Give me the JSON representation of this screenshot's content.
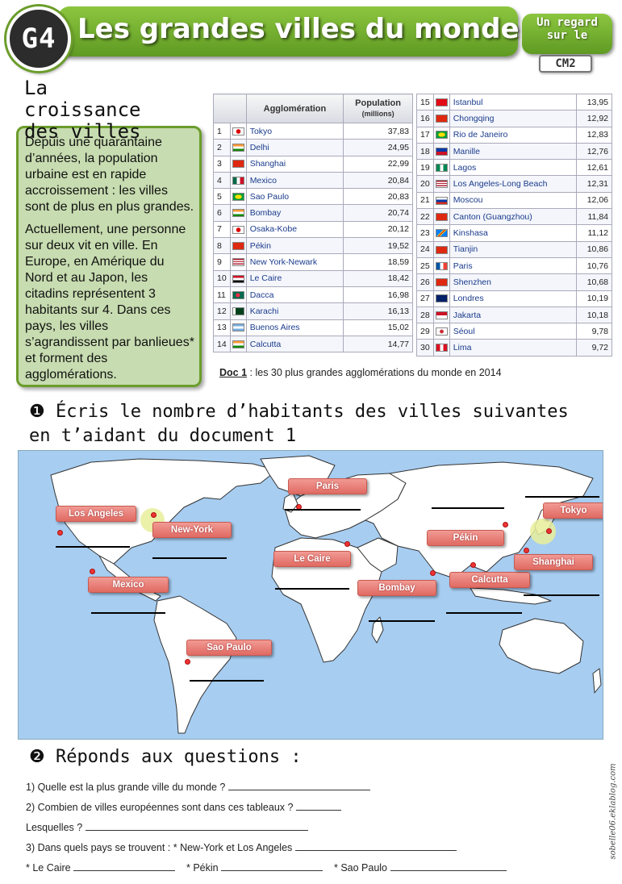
{
  "header": {
    "badge": "G4",
    "title": "Les grandes villes du monde",
    "series_badge": "Un regard sur le",
    "level": "CM2"
  },
  "lesson": {
    "subtitle": "La croissance des villes",
    "paragraph1": "Depuis une quarantaine d’années, la population urbaine est en rapide accroissement : les villes sont de plus en plus grandes.",
    "paragraph2": "Actuellement, une personne sur deux vit en ville. En Europe, en Amérique du Nord et au Japon, les citadins représentent 3 habitants sur 4. Dans ces pays, les villes s’agrandissent par banlieues* et forment des agglomérations."
  },
  "table": {
    "col_agglomeration": "Agglomération",
    "col_population": "Population",
    "col_population_unit": "(millions)",
    "left_rows": [
      {
        "rank": "1",
        "city": "Tokyo",
        "pop": "37,83",
        "flag": "japan"
      },
      {
        "rank": "2",
        "city": "Delhi",
        "pop": "24,95",
        "flag": "india"
      },
      {
        "rank": "3",
        "city": "Shanghai",
        "pop": "22,99",
        "flag": "china"
      },
      {
        "rank": "4",
        "city": "Mexico",
        "pop": "20,84",
        "flag": "mexico"
      },
      {
        "rank": "5",
        "city": "Sao Paulo",
        "pop": "20,83",
        "flag": "brazil"
      },
      {
        "rank": "6",
        "city": "Bombay",
        "pop": "20,74",
        "flag": "india"
      },
      {
        "rank": "7",
        "city": "Osaka-Kobe",
        "pop": "20,12",
        "flag": "japan"
      },
      {
        "rank": "8",
        "city": "Pékin",
        "pop": "19,52",
        "flag": "china"
      },
      {
        "rank": "9",
        "city": "New York-Newark",
        "pop": "18,59",
        "flag": "usa"
      },
      {
        "rank": "10",
        "city": "Le Caire",
        "pop": "18,42",
        "flag": "egypt"
      },
      {
        "rank": "11",
        "city": "Dacca",
        "pop": "16,98",
        "flag": "bangladesh"
      },
      {
        "rank": "12",
        "city": "Karachi",
        "pop": "16,13",
        "flag": "pakistan"
      },
      {
        "rank": "13",
        "city": "Buenos Aires",
        "pop": "15,02",
        "flag": "argentina"
      },
      {
        "rank": "14",
        "city": "Calcutta",
        "pop": "14,77",
        "flag": "india"
      }
    ],
    "right_rows": [
      {
        "rank": "15",
        "city": "Istanbul",
        "pop": "13,95",
        "flag": "turkey"
      },
      {
        "rank": "16",
        "city": "Chongqing",
        "pop": "12,92",
        "flag": "china"
      },
      {
        "rank": "17",
        "city": "Rio de Janeiro",
        "pop": "12,83",
        "flag": "brazil"
      },
      {
        "rank": "18",
        "city": "Manille",
        "pop": "12,76",
        "flag": "philippines"
      },
      {
        "rank": "19",
        "city": "Lagos",
        "pop": "12,61",
        "flag": "nigeria"
      },
      {
        "rank": "20",
        "city": "Los Angeles-Long Beach",
        "pop": "12,31",
        "flag": "usa"
      },
      {
        "rank": "21",
        "city": "Moscou",
        "pop": "12,06",
        "flag": "russia"
      },
      {
        "rank": "22",
        "city": "Canton (Guangzhou)",
        "pop": "11,84",
        "flag": "china"
      },
      {
        "rank": "23",
        "city": "Kinshasa",
        "pop": "11,12",
        "flag": "drc"
      },
      {
        "rank": "24",
        "city": "Tianjin",
        "pop": "10,86",
        "flag": "china"
      },
      {
        "rank": "25",
        "city": "Paris",
        "pop": "10,76",
        "flag": "france"
      },
      {
        "rank": "26",
        "city": "Shenzhen",
        "pop": "10,68",
        "flag": "china"
      },
      {
        "rank": "27",
        "city": "Londres",
        "pop": "10,19",
        "flag": "uk"
      },
      {
        "rank": "28",
        "city": "Jakarta",
        "pop": "10,18",
        "flag": "indonesia"
      },
      {
        "rank": "29",
        "city": "Séoul",
        "pop": "9,78",
        "flag": "korea"
      },
      {
        "rank": "30",
        "city": "Lima",
        "pop": "9,72",
        "flag": "peru"
      }
    ],
    "caption_ref": "Doc 1",
    "caption_text": " : les 30 plus grandes agglomérations du monde en 2014"
  },
  "exercise1": {
    "number": "❶",
    "instruction": "Écris le nombre d’habitants des villes suivantes en t’aidant du document 1"
  },
  "map": {
    "labels": {
      "los_angeles": "Los Angeles",
      "new_york": "New-York",
      "mexico": "Mexico",
      "sao_paulo": "Sao Paulo",
      "paris": "Paris",
      "le_caire": "Le Caire",
      "bombay": "Bombay",
      "calcutta": "Calcutta",
      "pekin": "Pékin",
      "shanghai": "Shanghai",
      "tokyo": "Tokyo"
    }
  },
  "exercise2": {
    "number": "❷",
    "title": "Réponds aux questions :",
    "q1": "1)   Quelle est la plus grande ville du monde ?",
    "q2": "2)   Combien de villes européennes sont dans ces tableaux ?",
    "q2b": "Lesquelles ?",
    "q3": "3)  Dans quels pays se trouvent :  * New-York et Los Angeles",
    "q3_cairo": "* Le Caire",
    "q3_pekin": "* Pékin",
    "q3_saopaulo": "* Sao Paulo"
  },
  "watermark": "sobelle06.eklablog.com",
  "colors": {
    "accent_green": "#6b9d2b",
    "box_green": "#c7dcb0",
    "ocean": "#a7cdf1",
    "label_red": "#e06a62"
  }
}
